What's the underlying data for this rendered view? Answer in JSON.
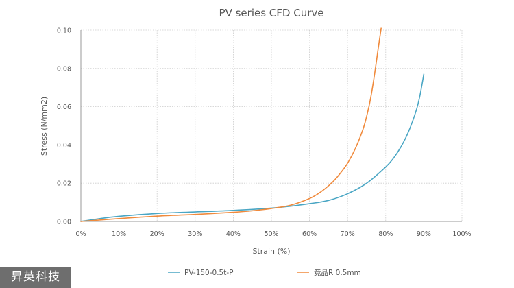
{
  "chart_data": {
    "type": "line",
    "title": "PV series CFD Curve",
    "xlabel": "Strain (%)",
    "ylabel": "Stress (N/mm2)",
    "xlim": [
      0,
      100
    ],
    "ylim": [
      0,
      0.1
    ],
    "xticks": [
      "0%",
      "10%",
      "20%",
      "30%",
      "40%",
      "50%",
      "60%",
      "70%",
      "80%",
      "90%",
      "100%"
    ],
    "yticks": [
      "0.00",
      "0.02",
      "0.04",
      "0.06",
      "0.08",
      "0.10"
    ],
    "grid": true,
    "legend_position": "bottom",
    "series": [
      {
        "name": "PV-150-0.5t-P",
        "color": "#4aa6c4",
        "x": [
          0,
          5,
          10,
          20,
          30,
          40,
          50,
          55,
          60,
          65,
          70,
          75,
          80,
          82,
          84,
          86,
          88,
          89,
          90
        ],
        "y": [
          0,
          0.0015,
          0.0027,
          0.0042,
          0.005,
          0.0058,
          0.007,
          0.008,
          0.0093,
          0.011,
          0.0145,
          0.02,
          0.0285,
          0.033,
          0.039,
          0.047,
          0.058,
          0.066,
          0.077
        ]
      },
      {
        "name": "竞品R 0.5mm",
        "color": "#f08a3c",
        "x": [
          0,
          10,
          20,
          30,
          40,
          45,
          50,
          55,
          60,
          63,
          66,
          68,
          70,
          72,
          74,
          75,
          76,
          77,
          78,
          78.8
        ],
        "y": [
          0,
          0.0015,
          0.0028,
          0.0037,
          0.0048,
          0.0056,
          0.0068,
          0.0085,
          0.012,
          0.0155,
          0.0205,
          0.025,
          0.0305,
          0.038,
          0.048,
          0.055,
          0.064,
          0.076,
          0.09,
          0.101
        ]
      }
    ]
  },
  "watermark": {
    "text": "昇英科技"
  }
}
